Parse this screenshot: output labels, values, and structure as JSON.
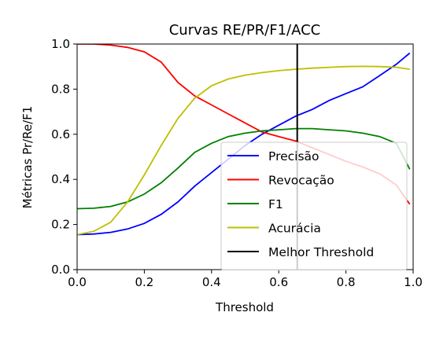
{
  "chart_data": {
    "type": "line",
    "title": "Curvas RE/PR/F1/ACC",
    "xlabel": "Threshold",
    "ylabel": "Métricas Pr/Re/F1",
    "xlim": [
      0.0,
      1.0
    ],
    "ylim": [
      0.0,
      1.0
    ],
    "xticks": [
      0.0,
      0.2,
      0.4,
      0.6,
      0.8,
      1.0
    ],
    "xtick_labels": [
      "0.0",
      "0.2",
      "0.4",
      "0.6",
      "0.8",
      "1.0"
    ],
    "yticks": [
      0.0,
      0.2,
      0.4,
      0.6,
      0.8,
      1.0
    ],
    "ytick_labels": [
      "0.0",
      "0.2",
      "0.4",
      "0.6",
      "0.8",
      "1.0"
    ],
    "grid": false,
    "legend_position": "lower-right",
    "series": [
      {
        "name": "Precisão",
        "color": "#0000ff",
        "x": [
          0.0,
          0.05,
          0.1,
          0.15,
          0.2,
          0.25,
          0.3,
          0.35,
          0.4,
          0.45,
          0.5,
          0.55,
          0.6,
          0.65,
          0.7,
          0.75,
          0.8,
          0.85,
          0.9,
          0.95,
          0.99
        ],
        "y": [
          0.155,
          0.158,
          0.165,
          0.18,
          0.205,
          0.245,
          0.3,
          0.37,
          0.43,
          0.49,
          0.55,
          0.6,
          0.64,
          0.68,
          0.71,
          0.75,
          0.78,
          0.81,
          0.86,
          0.91,
          0.96
        ]
      },
      {
        "name": "Revocação",
        "color": "#ff0000",
        "x": [
          0.0,
          0.05,
          0.1,
          0.15,
          0.2,
          0.25,
          0.3,
          0.35,
          0.4,
          0.45,
          0.5,
          0.55,
          0.6,
          0.65,
          0.7,
          0.75,
          0.8,
          0.85,
          0.9,
          0.95,
          0.99
        ],
        "y": [
          1.0,
          1.0,
          0.995,
          0.985,
          0.965,
          0.92,
          0.83,
          0.77,
          0.73,
          0.69,
          0.65,
          0.61,
          0.59,
          0.57,
          0.54,
          0.51,
          0.48,
          0.455,
          0.425,
          0.375,
          0.29
        ]
      },
      {
        "name": "F1",
        "color": "#008000",
        "x": [
          0.0,
          0.05,
          0.1,
          0.15,
          0.2,
          0.25,
          0.3,
          0.35,
          0.4,
          0.45,
          0.5,
          0.55,
          0.6,
          0.65,
          0.7,
          0.75,
          0.8,
          0.85,
          0.9,
          0.95,
          0.99
        ],
        "y": [
          0.27,
          0.272,
          0.28,
          0.3,
          0.335,
          0.385,
          0.45,
          0.52,
          0.56,
          0.59,
          0.605,
          0.615,
          0.62,
          0.625,
          0.625,
          0.62,
          0.615,
          0.605,
          0.59,
          0.56,
          0.445
        ]
      },
      {
        "name": "Acurácia",
        "color": "#bfbf00",
        "x": [
          0.0,
          0.05,
          0.1,
          0.15,
          0.2,
          0.25,
          0.3,
          0.35,
          0.4,
          0.45,
          0.5,
          0.55,
          0.6,
          0.65,
          0.7,
          0.75,
          0.8,
          0.85,
          0.9,
          0.95,
          0.99
        ],
        "y": [
          0.155,
          0.17,
          0.21,
          0.3,
          0.42,
          0.55,
          0.67,
          0.76,
          0.815,
          0.845,
          0.862,
          0.873,
          0.882,
          0.888,
          0.893,
          0.897,
          0.9,
          0.901,
          0.9,
          0.897,
          0.888
        ]
      }
    ],
    "vertical_line": {
      "name": "Melhor Threshold",
      "x": 0.655,
      "color": "#000000"
    }
  }
}
